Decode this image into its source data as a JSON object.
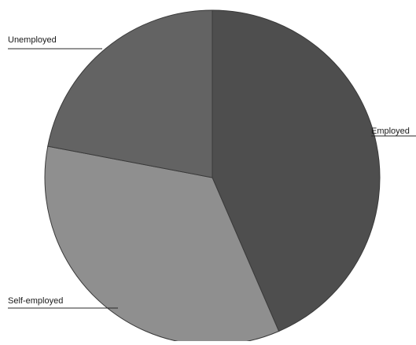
{
  "chart_data": {
    "type": "pie",
    "categories": [
      "Employed",
      "Self-employed",
      "Unemployed"
    ],
    "values": [
      43.5,
      34.5,
      22.0
    ],
    "colors": [
      "#4e4e4e",
      "#8f8f8f",
      "#636363"
    ],
    "legend": "none"
  }
}
